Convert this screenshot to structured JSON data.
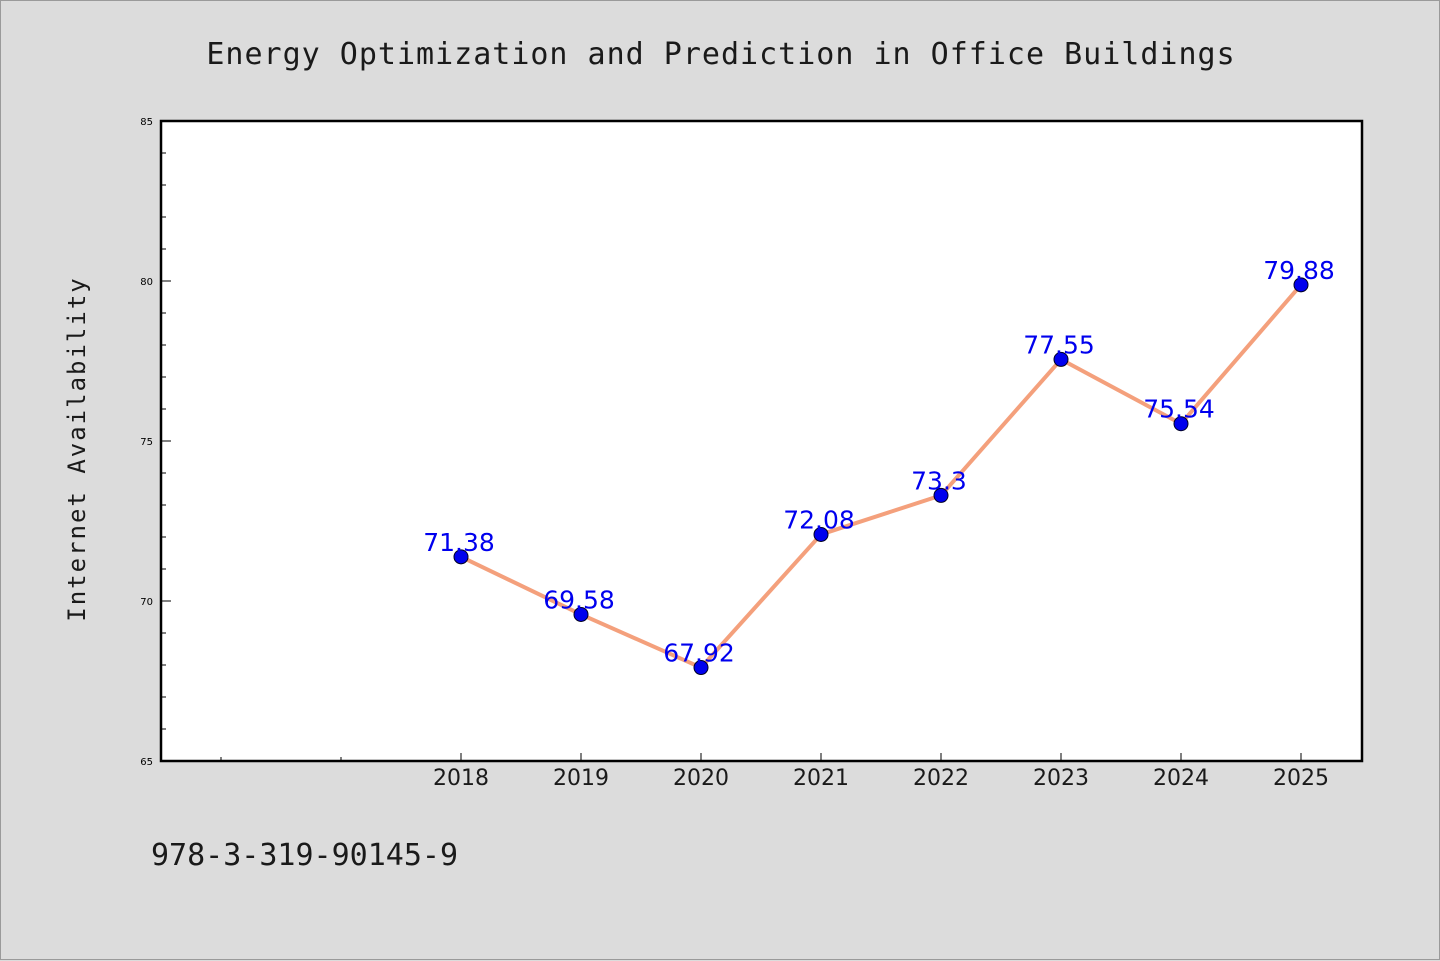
{
  "chart_data": {
    "type": "line",
    "title": "Energy Optimization and Prediction in Office Buildings",
    "xlabel": "",
    "ylabel": "Internet Availability",
    "x": [
      "2018",
      "2019",
      "2020",
      "2021",
      "2022",
      "2023",
      "2024",
      "2025"
    ],
    "series": [
      {
        "values": [
          71.38,
          69.58,
          67.92,
          72.08,
          73.3,
          77.55,
          75.54,
          79.88
        ],
        "labels": [
          "71.38",
          "69.58",
          "67.92",
          "72.08",
          "73.3",
          "77.55",
          "75.54",
          "79.88"
        ]
      }
    ],
    "ylim": [
      65,
      85
    ],
    "yticks": [
      "65",
      "70",
      "75",
      "80",
      "85"
    ],
    "grid": false,
    "legend": "none",
    "colors": {
      "line": "#f4a07c",
      "marker": "#0000ee",
      "label": "#0000ee",
      "plot_bg": "#ffffff",
      "page_bg": "#dcdcdc"
    }
  },
  "footer": {
    "isbn": "978-3-319-90145-9"
  }
}
